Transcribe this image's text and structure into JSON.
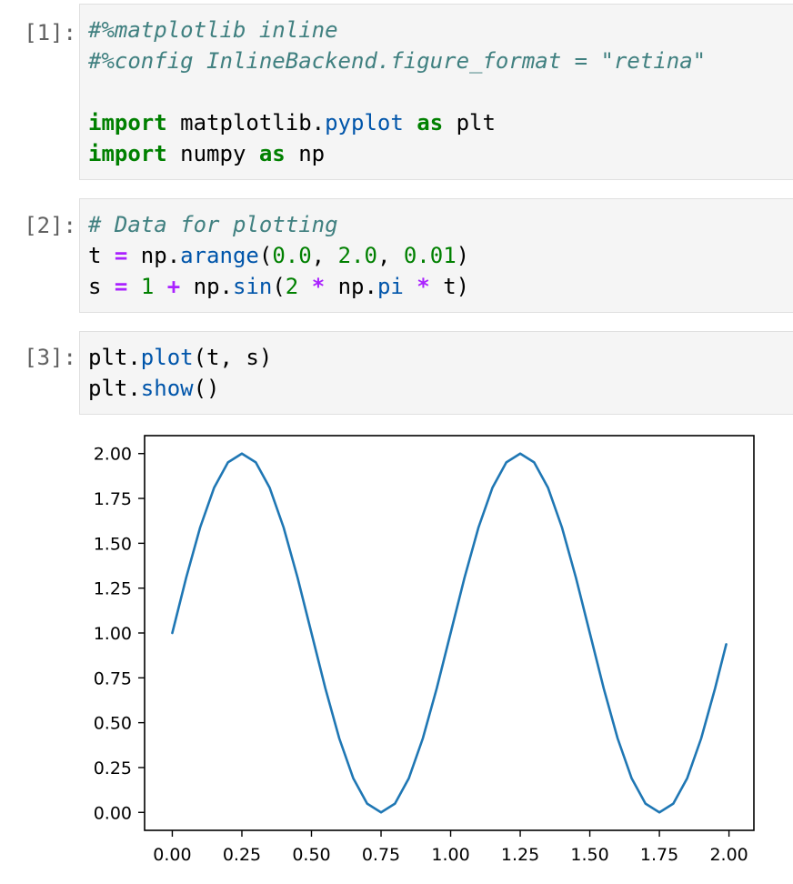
{
  "cells": [
    {
      "prompt": "[1]:",
      "lines": [
        [
          {
            "c": "cm",
            "t": "#%matplotlib inline"
          }
        ],
        [
          {
            "c": "cm",
            "t": "#%config InlineBackend.figure_format = \"retina\""
          }
        ],
        [],
        [
          {
            "c": "kw",
            "t": "import"
          },
          {
            "c": "nx",
            "t": " matplotlib."
          },
          {
            "c": "fn",
            "t": "pyplot"
          },
          {
            "c": "nx",
            "t": " "
          },
          {
            "c": "kw",
            "t": "as"
          },
          {
            "c": "nx",
            "t": " plt"
          }
        ],
        [
          {
            "c": "kw",
            "t": "import"
          },
          {
            "c": "nx",
            "t": " numpy "
          },
          {
            "c": "kw",
            "t": "as"
          },
          {
            "c": "nx",
            "t": " np"
          }
        ]
      ]
    },
    {
      "prompt": "[2]:",
      "lines": [
        [
          {
            "c": "cm",
            "t": "# Data for plotting"
          }
        ],
        [
          {
            "c": "nx",
            "t": "t "
          },
          {
            "c": "op",
            "t": "="
          },
          {
            "c": "nx",
            "t": " np."
          },
          {
            "c": "fn",
            "t": "arange"
          },
          {
            "c": "nx",
            "t": "("
          },
          {
            "c": "nm",
            "t": "0.0"
          },
          {
            "c": "nx",
            "t": ", "
          },
          {
            "c": "nm",
            "t": "2.0"
          },
          {
            "c": "nx",
            "t": ", "
          },
          {
            "c": "nm",
            "t": "0.01"
          },
          {
            "c": "nx",
            "t": ")"
          }
        ],
        [
          {
            "c": "nx",
            "t": "s "
          },
          {
            "c": "op",
            "t": "="
          },
          {
            "c": "nx",
            "t": " "
          },
          {
            "c": "nm",
            "t": "1"
          },
          {
            "c": "nx",
            "t": " "
          },
          {
            "c": "op",
            "t": "+"
          },
          {
            "c": "nx",
            "t": " np."
          },
          {
            "c": "fn",
            "t": "sin"
          },
          {
            "c": "nx",
            "t": "("
          },
          {
            "c": "nm",
            "t": "2"
          },
          {
            "c": "nx",
            "t": " "
          },
          {
            "c": "op",
            "t": "*"
          },
          {
            "c": "nx",
            "t": " np."
          },
          {
            "c": "fn",
            "t": "pi"
          },
          {
            "c": "nx",
            "t": " "
          },
          {
            "c": "op",
            "t": "*"
          },
          {
            "c": "nx",
            "t": " t)"
          }
        ]
      ]
    },
    {
      "prompt": "[3]:",
      "lines": [
        [
          {
            "c": "nx",
            "t": "plt."
          },
          {
            "c": "fn",
            "t": "plot"
          },
          {
            "c": "nx",
            "t": "(t, s)"
          }
        ],
        [
          {
            "c": "nx",
            "t": "plt."
          },
          {
            "c": "fn",
            "t": "show"
          },
          {
            "c": "nx",
            "t": "()"
          }
        ]
      ]
    }
  ],
  "chart_data": {
    "type": "line",
    "title": "",
    "xlabel": "",
    "ylabel": "",
    "xlim": [
      -0.0995,
      2.0895
    ],
    "ylim": [
      -0.1,
      2.1
    ],
    "x_ticks": [
      "0.00",
      "0.25",
      "0.50",
      "0.75",
      "1.00",
      "1.25",
      "1.50",
      "1.75",
      "2.00"
    ],
    "y_ticks": [
      "0.00",
      "0.25",
      "0.50",
      "0.75",
      "1.00",
      "1.25",
      "1.50",
      "1.75",
      "2.00"
    ],
    "grid": false,
    "series": [
      {
        "color": "#1f77b4",
        "x": [
          0.0,
          0.05,
          0.1,
          0.15,
          0.2,
          0.25,
          0.3,
          0.35,
          0.4,
          0.45,
          0.5,
          0.55,
          0.6,
          0.65,
          0.7,
          0.75,
          0.8,
          0.85,
          0.9,
          0.95,
          1.0,
          1.05,
          1.1,
          1.15,
          1.2,
          1.25,
          1.3,
          1.35,
          1.4,
          1.45,
          1.5,
          1.55,
          1.6,
          1.65,
          1.7,
          1.75,
          1.8,
          1.85,
          1.9,
          1.95,
          1.99
        ],
        "y": [
          1.0,
          1.309,
          1.588,
          1.809,
          1.951,
          2.0,
          1.951,
          1.809,
          1.588,
          1.309,
          1.0,
          0.691,
          0.412,
          0.191,
          0.049,
          0.0,
          0.049,
          0.191,
          0.412,
          0.691,
          1.0,
          1.309,
          1.588,
          1.809,
          1.951,
          2.0,
          1.951,
          1.809,
          1.588,
          1.309,
          1.0,
          0.691,
          0.412,
          0.191,
          0.049,
          0.0,
          0.049,
          0.191,
          0.412,
          0.691,
          0.937
        ]
      }
    ]
  }
}
